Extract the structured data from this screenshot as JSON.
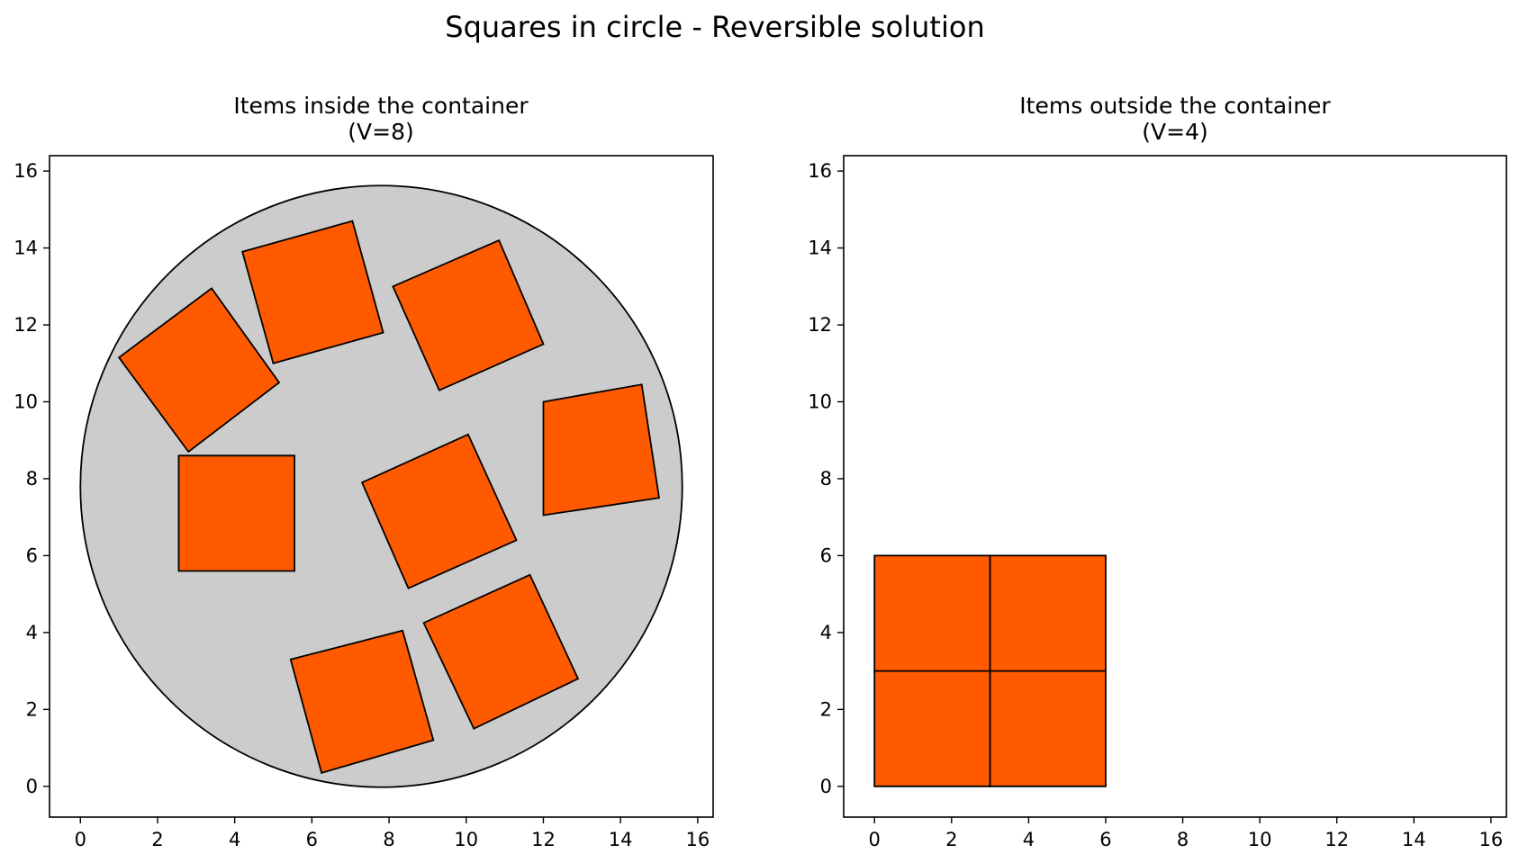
{
  "figure": {
    "title": "Squares in circle - Reversible solution"
  },
  "colors": {
    "item_fill": "#ff5a00",
    "item_edge": "#000000",
    "container_fill": "#cccccc",
    "container_edge": "#000000",
    "background": "#ffffff"
  },
  "chart_data": [
    {
      "type": "scatter",
      "title": "Items inside the container",
      "subtitle": "(V=8)",
      "xlabel": "",
      "ylabel": "",
      "xlim": [
        -0.8,
        16.4
      ],
      "ylim": [
        -0.8,
        16.4
      ],
      "xticks": [
        0,
        2,
        4,
        6,
        8,
        10,
        12,
        14,
        16
      ],
      "yticks": [
        0,
        2,
        4,
        6,
        8,
        10,
        12,
        14,
        16
      ],
      "grid": false,
      "container": {
        "shape": "circle",
        "center": [
          7.8,
          7.8
        ],
        "radius": 7.8
      },
      "items": [
        {
          "shape": "square",
          "corners": [
            [
              1.0,
              11.15
            ],
            [
              3.4,
              12.95
            ],
            [
              5.15,
              10.5
            ],
            [
              2.8,
              8.7
            ]
          ]
        },
        {
          "shape": "square",
          "corners": [
            [
              4.2,
              13.9
            ],
            [
              7.05,
              14.7
            ],
            [
              7.85,
              11.8
            ],
            [
              5.0,
              11.0
            ]
          ]
        },
        {
          "shape": "square",
          "corners": [
            [
              8.1,
              13.0
            ],
            [
              10.85,
              14.2
            ],
            [
              12.0,
              11.5
            ],
            [
              9.3,
              10.3
            ]
          ]
        },
        {
          "shape": "square",
          "corners": [
            [
              12.0,
              10.0
            ],
            [
              14.55,
              10.45
            ],
            [
              15.0,
              7.5
            ],
            [
              12.0,
              7.05
            ]
          ]
        },
        {
          "shape": "square",
          "corners": [
            [
              2.55,
              8.6
            ],
            [
              5.55,
              8.6
            ],
            [
              5.55,
              5.6
            ],
            [
              2.55,
              5.6
            ]
          ]
        },
        {
          "shape": "square",
          "corners": [
            [
              7.3,
              7.9
            ],
            [
              10.05,
              9.15
            ],
            [
              11.3,
              6.4
            ],
            [
              8.5,
              5.15
            ]
          ]
        },
        {
          "shape": "square",
          "corners": [
            [
              8.9,
              4.25
            ],
            [
              11.65,
              5.5
            ],
            [
              12.9,
              2.8
            ],
            [
              10.2,
              1.5
            ]
          ]
        },
        {
          "shape": "square",
          "corners": [
            [
              5.45,
              3.3
            ],
            [
              8.35,
              4.05
            ],
            [
              9.15,
              1.2
            ],
            [
              6.25,
              0.35
            ]
          ]
        }
      ]
    },
    {
      "type": "scatter",
      "title": "Items outside the container",
      "subtitle": "(V=4)",
      "xlabel": "",
      "ylabel": "",
      "xlim": [
        -0.8,
        16.4
      ],
      "ylim": [
        -0.8,
        16.4
      ],
      "xticks": [
        0,
        2,
        4,
        6,
        8,
        10,
        12,
        14,
        16
      ],
      "yticks": [
        0,
        2,
        4,
        6,
        8,
        10,
        12,
        14,
        16
      ],
      "grid": false,
      "container": null,
      "items": [
        {
          "shape": "square",
          "corners": [
            [
              0,
              0
            ],
            [
              3,
              0
            ],
            [
              3,
              3
            ],
            [
              0,
              3
            ]
          ]
        },
        {
          "shape": "square",
          "corners": [
            [
              3,
              0
            ],
            [
              6,
              0
            ],
            [
              6,
              3
            ],
            [
              3,
              3
            ]
          ]
        },
        {
          "shape": "square",
          "corners": [
            [
              0,
              3
            ],
            [
              3,
              3
            ],
            [
              3,
              6
            ],
            [
              0,
              6
            ]
          ]
        },
        {
          "shape": "square",
          "corners": [
            [
              3,
              3
            ],
            [
              6,
              3
            ],
            [
              6,
              6
            ],
            [
              3,
              6
            ]
          ]
        }
      ]
    }
  ]
}
